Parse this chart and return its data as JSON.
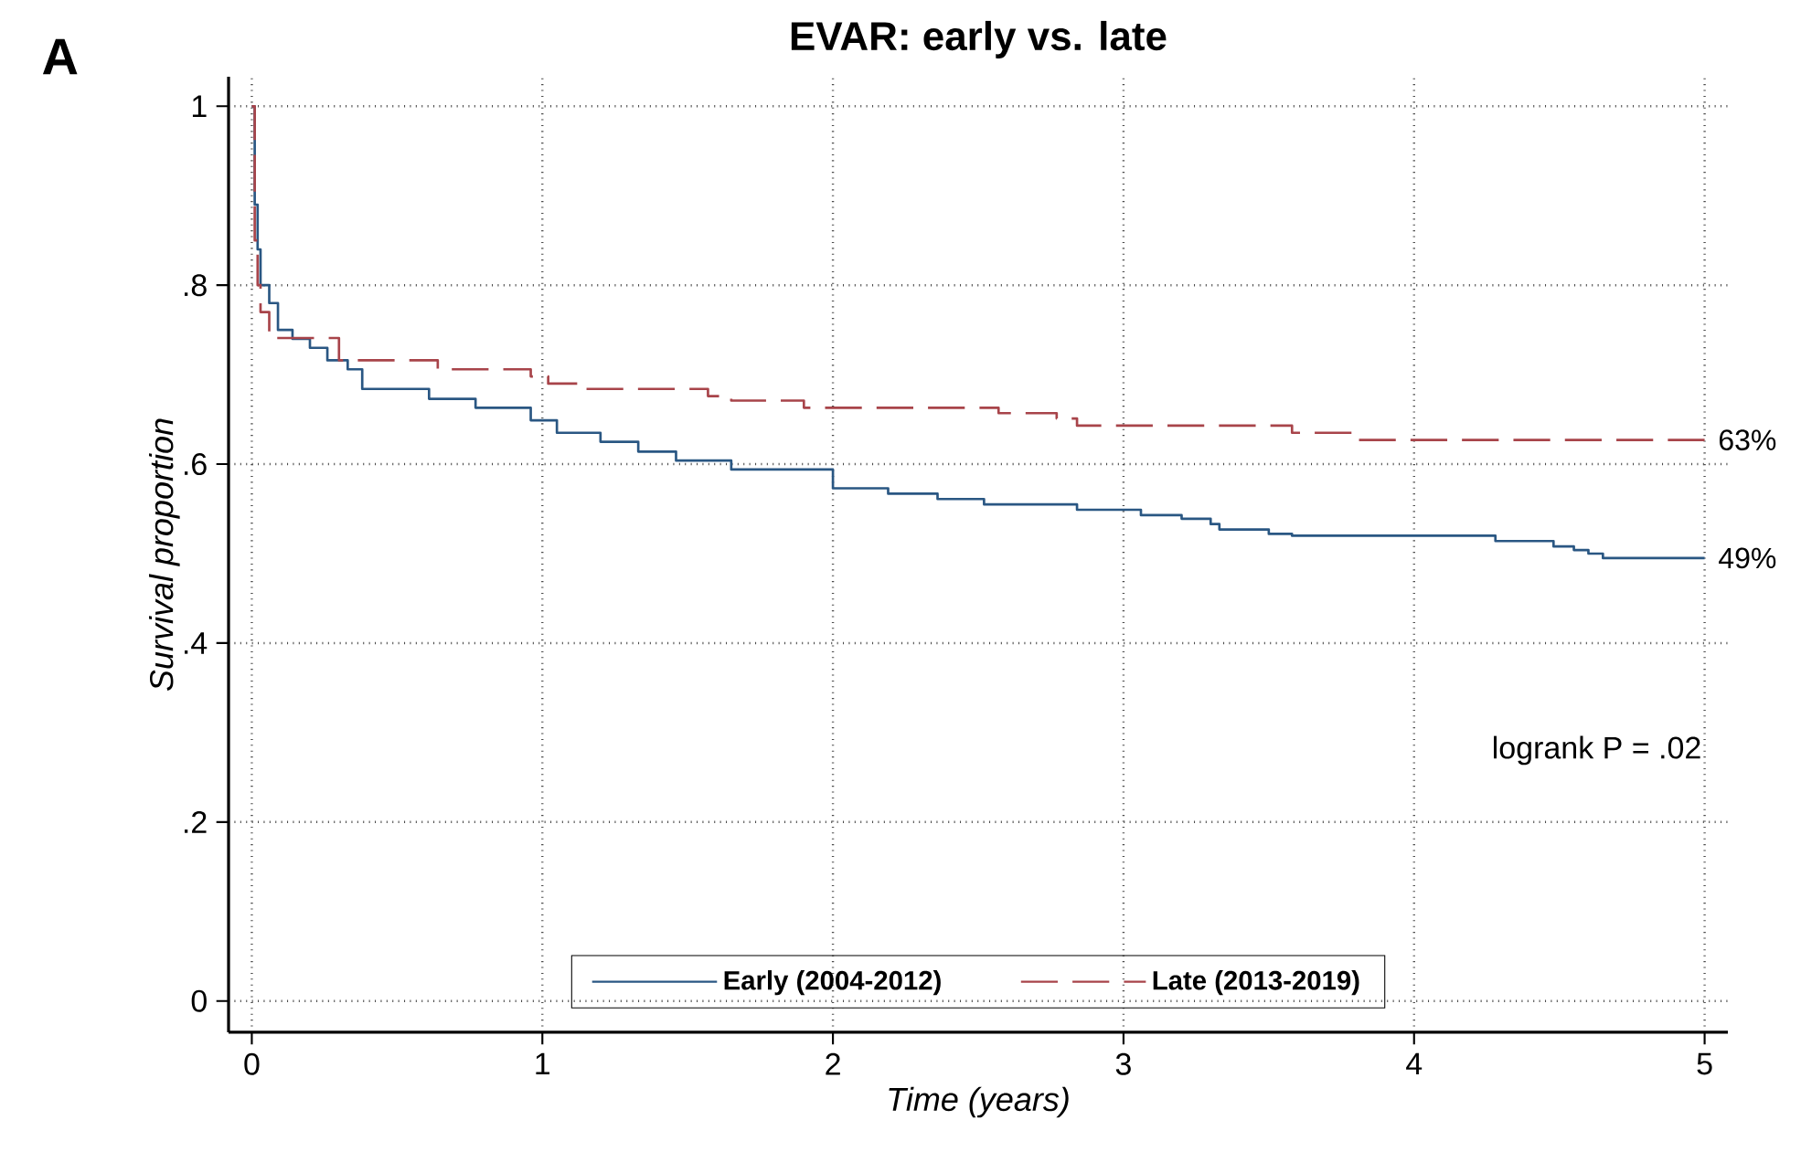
{
  "chart_data": {
    "type": "step",
    "title": "EVAR: early vs. late",
    "xlabel": "Time (years)",
    "ylabel": "Survival proportion",
    "xlim": [
      -0.08,
      5.08
    ],
    "ylim": [
      -0.035,
      1.033
    ],
    "xticks": [
      0,
      1,
      2,
      3,
      4,
      5
    ],
    "yticks": [
      {
        "value": 0,
        "label": "0"
      },
      {
        "value": 0.2,
        "label": ".2"
      },
      {
        "value": 0.4,
        "label": ".4"
      },
      {
        "value": 0.6,
        "label": ".6"
      },
      {
        "value": 0.8,
        "label": ".8"
      },
      {
        "value": 1,
        "label": "1"
      }
    ],
    "grid": true,
    "legend": "bottom",
    "marker": "none",
    "series": [
      {
        "name": "Early (2004-2012)",
        "color": "#2a5783",
        "line_style": "solid",
        "x": [
          0,
          0.01,
          0.02,
          0.03,
          0.06,
          0.09,
          0.14,
          0.2,
          0.26,
          0.33,
          0.38,
          0.61,
          0.77,
          0.96,
          1.05,
          1.2,
          1.33,
          1.46,
          1.65,
          2.0,
          2.19,
          2.36,
          2.52,
          2.84,
          3.06,
          3.2,
          3.3,
          3.33,
          3.5,
          3.58,
          4.28,
          4.48,
          4.55,
          4.6,
          4.65,
          5
        ],
        "values": [
          1,
          0.89,
          0.84,
          0.8,
          0.78,
          0.75,
          0.74,
          0.73,
          0.716,
          0.706,
          0.684,
          0.673,
          0.663,
          0.649,
          0.635,
          0.625,
          0.614,
          0.604,
          0.594,
          0.573,
          0.567,
          0.561,
          0.555,
          0.549,
          0.543,
          0.539,
          0.533,
          0.527,
          0.522,
          0.52,
          0.514,
          0.508,
          0.504,
          0.5,
          0.495,
          0.495
        ]
      },
      {
        "name": "Late (2013-2019)",
        "color": "#a8444a",
        "line_style": "dashed",
        "x": [
          0,
          0.01,
          0.02,
          0.03,
          0.06,
          0.3,
          0.64,
          0.96,
          1.02,
          1.15,
          1.57,
          1.65,
          1.9,
          2.57,
          2.77,
          2.84,
          3.58,
          3.8,
          5
        ],
        "values": [
          1,
          0.85,
          0.8,
          0.77,
          0.741,
          0.716,
          0.706,
          0.698,
          0.69,
          0.684,
          0.676,
          0.671,
          0.663,
          0.657,
          0.651,
          0.643,
          0.635,
          0.627,
          0.627
        ]
      }
    ],
    "annotations": [
      "A",
      "logrank P = .02",
      {
        "text": "63%",
        "x": 5,
        "y": 0.627
      },
      {
        "text": "49%",
        "x": 5,
        "y": 0.495
      }
    ]
  }
}
